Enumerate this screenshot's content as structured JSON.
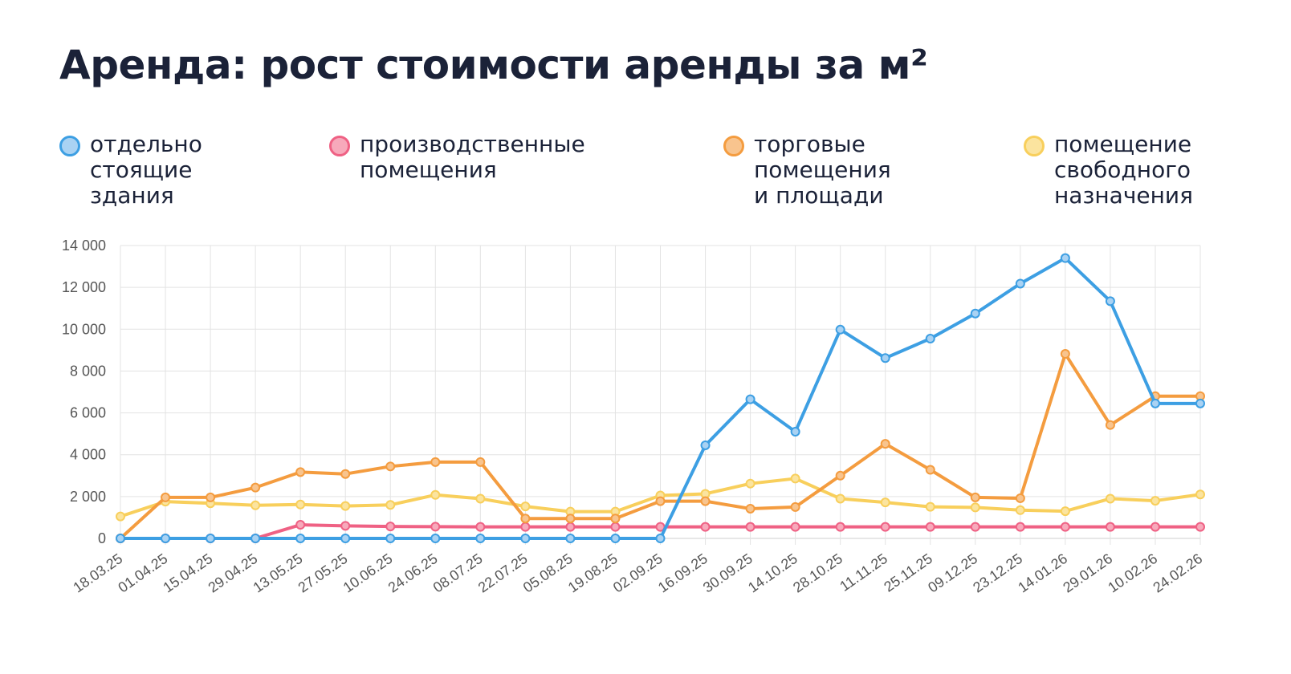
{
  "chart_data": {
    "type": "line",
    "title": "Аренда: рост стоимости аренды за м²",
    "xlabel": "",
    "ylabel": "",
    "ylim": [
      0,
      14000
    ],
    "y_ticks": [
      "0",
      "2 000",
      "4 000",
      "6 000",
      "8 000",
      "10 000",
      "12 000",
      "14 000"
    ],
    "y_tick_values": [
      0,
      2000,
      4000,
      6000,
      8000,
      10000,
      12000,
      14000
    ],
    "grid": true,
    "legend_position": "top",
    "categories": [
      "18.03.25",
      "01.04.25",
      "15.04.25",
      "29.04.25",
      "13.05.25",
      "27.05.25",
      "10.06.25",
      "24.06.25",
      "08.07.25",
      "22.07.25",
      "05.08.25",
      "19.08.25",
      "02.09.25",
      "16.09.25",
      "30.09.25",
      "14.10.25",
      "28.10.25",
      "11.11.25",
      "25.11.25",
      "09.12.25",
      "23.12.25",
      "14.01.26",
      "29.01.26",
      "10.02.26",
      "24.02.26"
    ],
    "series": [
      {
        "name": "отдельно\nстоящие\nздания",
        "color": "#3d9fe3",
        "fill": "#a9d2f3",
        "values": [
          0,
          0,
          0,
          0,
          0,
          0,
          0,
          0,
          0,
          0,
          0,
          0,
          0,
          4450,
          6650,
          5100,
          9980,
          8620,
          9550,
          10750,
          12180,
          13400,
          11340,
          6450,
          6450
        ]
      },
      {
        "name": "производственные\nпомещения",
        "color": "#ef6184",
        "fill": "#f7a9bb",
        "values": [
          0,
          0,
          0,
          0,
          650,
          600,
          570,
          560,
          550,
          550,
          550,
          550,
          550,
          550,
          550,
          550,
          550,
          550,
          550,
          550,
          550,
          550,
          550,
          550,
          550
        ]
      },
      {
        "name": "торговые\nпомещения\nи площади",
        "color": "#f49c3f",
        "fill": "#f8c48e",
        "values": [
          0,
          1960,
          1960,
          2430,
          3170,
          3080,
          3440,
          3650,
          3650,
          950,
          950,
          950,
          1780,
          1780,
          1420,
          1500,
          3000,
          4520,
          3280,
          1960,
          1920,
          8820,
          5420,
          6800,
          6800
        ]
      },
      {
        "name": "помещение\nсвободного\nназначения",
        "color": "#f8cf5c",
        "fill": "#fbe49f",
        "values": [
          1050,
          1760,
          1680,
          1580,
          1620,
          1550,
          1600,
          2080,
          1900,
          1530,
          1280,
          1280,
          2050,
          2130,
          2620,
          2860,
          1900,
          1720,
          1510,
          1480,
          1350,
          1300,
          1900,
          1800,
          2100
        ]
      }
    ]
  }
}
